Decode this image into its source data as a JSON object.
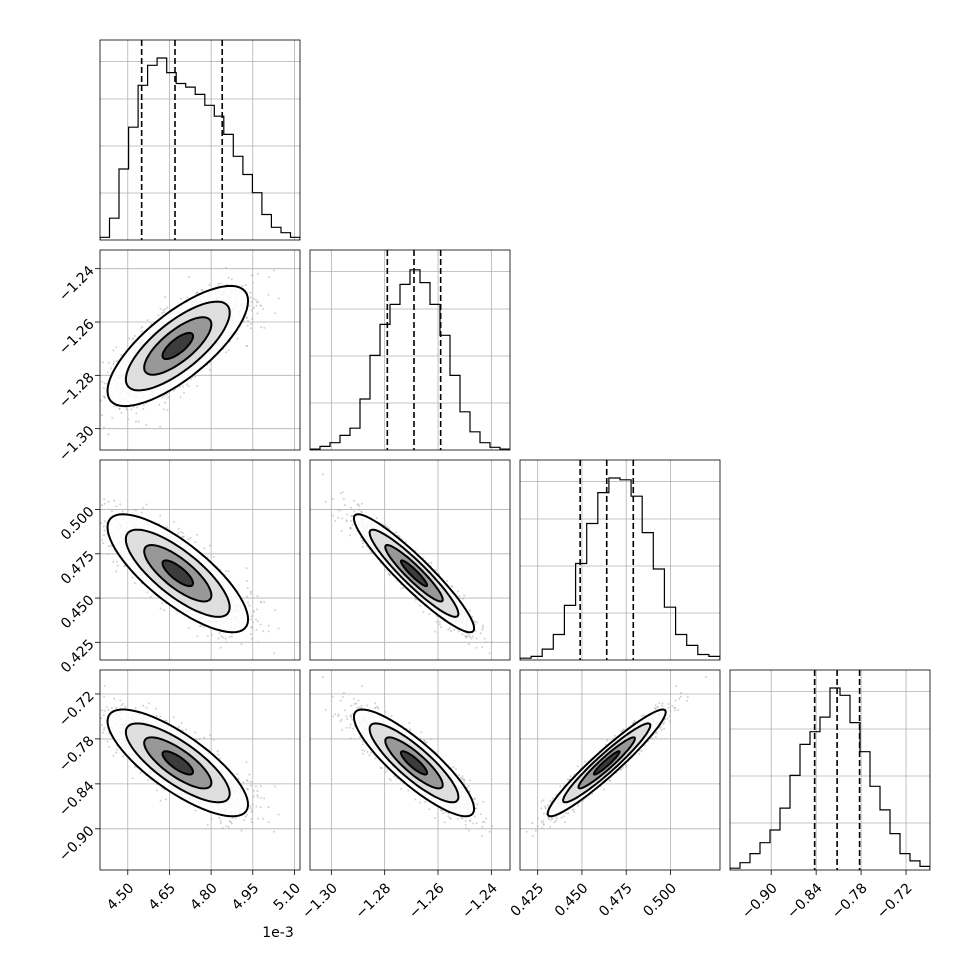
{
  "chart_data": {
    "type": "corner",
    "description_of_layout": "4x4 lower-triangular corner plot",
    "grid": true,
    "params": [
      {
        "range": [
          4.4,
          5.12
        ],
        "ticks": [
          4.5,
          4.65,
          4.8,
          4.95,
          5.1
        ],
        "tick_labels": [
          "4.50",
          "4.65",
          "4.80",
          "4.95",
          "5.10"
        ],
        "offset_label": "1e-3",
        "quantiles": [
          4.55,
          4.67,
          4.84
        ],
        "hist": [
          0.015,
          0.12,
          0.39,
          0.62,
          0.85,
          0.96,
          1.0,
          0.92,
          0.86,
          0.84,
          0.8,
          0.74,
          0.68,
          0.58,
          0.46,
          0.36,
          0.26,
          0.14,
          0.07,
          0.04,
          0.015
        ],
        "samples": {
          "mean": 4.68,
          "sd": 0.11
        }
      },
      {
        "range": [
          -1.308,
          -1.233
        ],
        "ticks": [
          -1.3,
          -1.28,
          -1.26,
          -1.24
        ],
        "tick_labels": [
          "−1.30",
          "−1.28",
          "−1.26",
          "−1.24"
        ],
        "quantiles": [
          -1.279,
          -1.269,
          -1.259
        ],
        "hist": [
          0.005,
          0.02,
          0.04,
          0.08,
          0.12,
          0.28,
          0.52,
          0.69,
          0.8,
          0.91,
          0.99,
          0.92,
          0.8,
          0.63,
          0.41,
          0.21,
          0.1,
          0.04,
          0.015,
          0.005
        ],
        "samples": {
          "mean": -1.269,
          "sd": 0.0098
        }
      },
      {
        "range": [
          0.415,
          0.528
        ],
        "ticks": [
          0.425,
          0.45,
          0.475,
          0.5
        ],
        "tick_labels": [
          "0.425",
          "0.450",
          "0.475",
          "0.500"
        ],
        "quantiles": [
          0.449,
          0.464,
          0.479
        ],
        "hist": [
          0.01,
          0.02,
          0.06,
          0.14,
          0.3,
          0.53,
          0.75,
          0.92,
          1.0,
          0.99,
          0.9,
          0.7,
          0.5,
          0.29,
          0.14,
          0.08,
          0.03,
          0.02
        ],
        "samples": {
          "mean": 0.464,
          "sd": 0.0145
        }
      },
      {
        "range": [
          -0.955,
          -0.688
        ],
        "ticks": [
          -0.9,
          -0.84,
          -0.78,
          -0.72
        ],
        "tick_labels": [
          "−0.90",
          "−0.84",
          "−0.78",
          "−0.72"
        ],
        "quantiles": [
          -0.842,
          -0.812,
          -0.782
        ],
        "hist": [
          0.01,
          0.04,
          0.09,
          0.15,
          0.22,
          0.34,
          0.52,
          0.69,
          0.76,
          0.84,
          1.0,
          0.96,
          0.81,
          0.65,
          0.46,
          0.33,
          0.2,
          0.09,
          0.05,
          0.02
        ],
        "samples": {
          "mean": -0.812,
          "sd": 0.031
        }
      }
    ],
    "pairs": [
      {
        "row": 1,
        "col": 0,
        "rho": 0.75
      },
      {
        "row": 2,
        "col": 0,
        "rho": -0.78
      },
      {
        "row": 2,
        "col": 1,
        "rho": -0.93
      },
      {
        "row": 3,
        "col": 0,
        "rho": -0.78
      },
      {
        "row": 3,
        "col": 1,
        "rho": -0.86
      },
      {
        "row": 3,
        "col": 2,
        "rho": 0.95
      }
    ]
  }
}
